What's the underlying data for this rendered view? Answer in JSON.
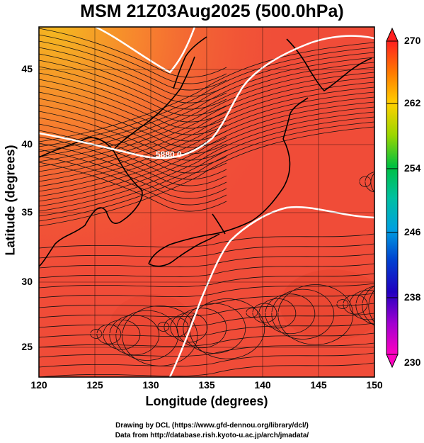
{
  "title": "MSM 21Z03Aug2025 (500.0hPa)",
  "xlabel": "Longitude (degrees)",
  "ylabel": "Latitude  (degrees)",
  "x_ticks": [
    "120",
    "125",
    "130",
    "135",
    "140",
    "145",
    "150"
  ],
  "y_ticks": [
    "25",
    "30",
    "35",
    "40",
    "45"
  ],
  "contour_label": "5880.0",
  "colorbar": {
    "ticks": [
      "270",
      "262",
      "254",
      "246",
      "238",
      "230"
    ],
    "colors": [
      "#ff2020",
      "#ff7a00",
      "#ffd000",
      "#9bd600",
      "#00c040",
      "#00c0a0",
      "#00a0e0",
      "#0040d0",
      "#2000c0",
      "#a000d0",
      "#ff00c0"
    ]
  },
  "credit": [
    "Drawing by DCL (https://www.gfd-dennou.org/library/dcl/)",
    "Data from http://database.rish.kyoto-u.ac.jp/arch/jmadata/"
  ],
  "colors": {
    "field_main": "#f04c38",
    "field_warm": "#f7822e",
    "field_yellow": "#f4b820"
  }
}
